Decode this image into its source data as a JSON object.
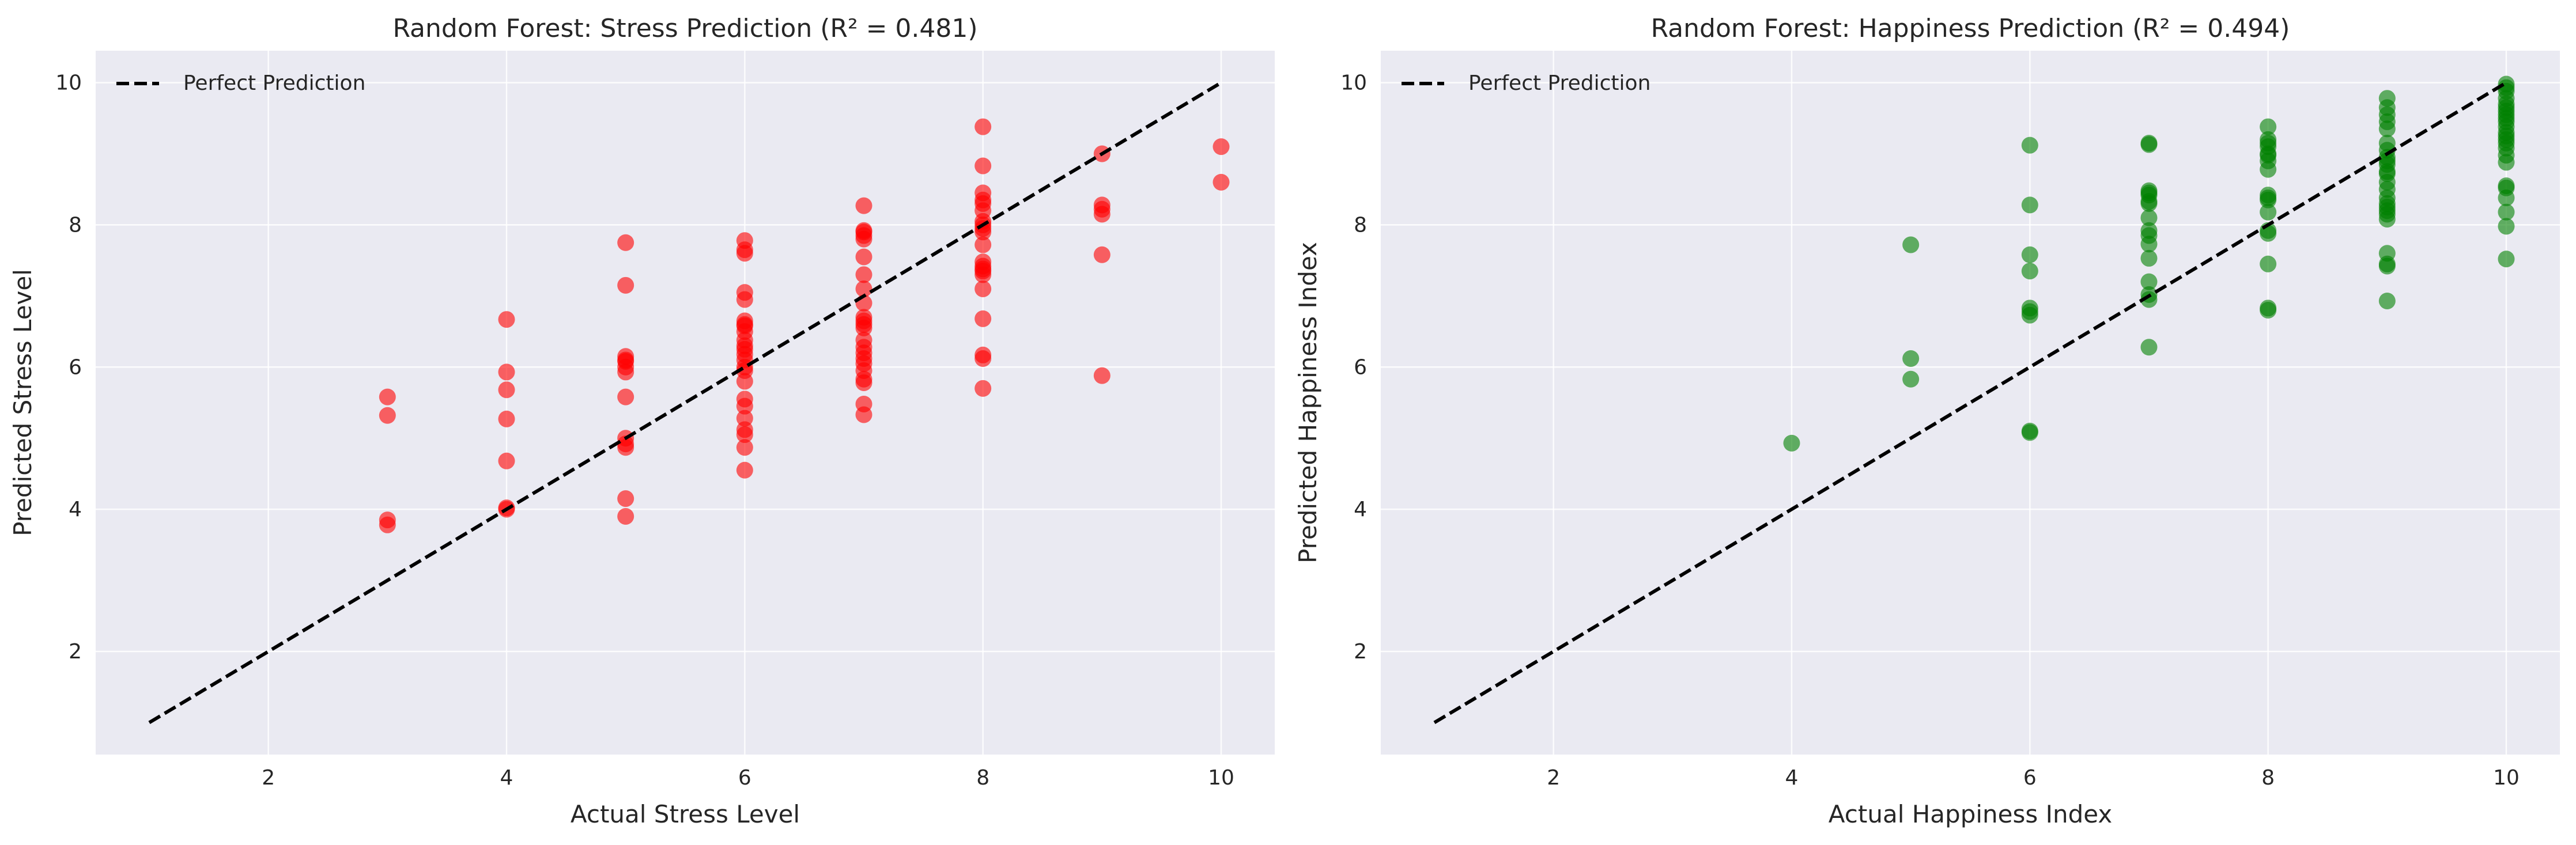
{
  "chart_data": [
    {
      "type": "scatter",
      "title": "Random Forest: Stress Prediction (R² = 0.481)",
      "xlabel": "Actual Stress Level",
      "ylabel": "Predicted Stress Level",
      "xlim": [
        0.55,
        10.45
      ],
      "ylim": [
        0.55,
        10.45
      ],
      "xticks": [
        2,
        4,
        6,
        8,
        10
      ],
      "yticks": [
        2,
        4,
        6,
        8,
        10
      ],
      "grid": true,
      "legend_position": "top-left",
      "series": [
        {
          "name": "",
          "color": "#ff0000",
          "x": [
            3,
            3,
            3,
            3,
            4,
            4,
            4,
            4,
            4,
            4,
            4,
            5,
            5,
            5,
            5,
            5,
            5,
            5,
            5,
            5,
            5,
            5,
            5,
            5,
            6,
            6,
            6,
            6,
            6,
            6,
            6,
            6,
            6,
            6,
            6,
            6,
            6,
            6,
            6,
            6,
            6,
            6,
            6,
            6,
            6,
            6,
            6,
            6,
            7,
            7,
            7,
            7,
            7,
            7,
            7,
            7,
            7,
            7,
            7,
            7,
            7,
            7,
            7,
            7,
            7,
            7,
            7,
            7,
            7,
            7,
            7,
            8,
            8,
            8,
            8,
            8,
            8,
            8,
            8,
            8,
            8,
            8,
            8,
            8,
            8,
            8,
            8,
            8,
            8,
            8,
            8,
            8,
            9,
            9,
            9,
            9,
            9,
            9,
            10,
            10
          ],
          "y": [
            5.58,
            5.32,
            3.85,
            3.78,
            6.67,
            5.93,
            5.68,
            5.27,
            4.68,
            4.02,
            4.0,
            7.75,
            7.15,
            6.15,
            6.08,
            6.0,
            5.93,
            5.58,
            5.0,
            4.92,
            4.87,
            4.15,
            3.9,
            6.1,
            7.78,
            7.65,
            7.6,
            7.05,
            6.95,
            6.65,
            6.58,
            6.5,
            6.38,
            6.25,
            6.18,
            6.1,
            6.0,
            5.95,
            5.8,
            5.55,
            5.45,
            5.28,
            5.12,
            5.05,
            4.87,
            4.55,
            6.6,
            6.3,
            8.27,
            7.92,
            7.85,
            7.8,
            7.55,
            7.3,
            7.1,
            6.9,
            6.7,
            6.65,
            6.55,
            6.38,
            6.28,
            6.12,
            6.05,
            5.95,
            5.83,
            5.78,
            5.48,
            5.33,
            7.9,
            6.6,
            6.2,
            9.38,
            8.83,
            8.45,
            8.3,
            8.2,
            8.0,
            7.95,
            7.72,
            7.48,
            7.42,
            7.35,
            7.3,
            7.1,
            6.68,
            6.17,
            6.12,
            5.7,
            8.35,
            7.38,
            8.05,
            7.9,
            9.0,
            8.28,
            8.22,
            8.15,
            7.58,
            5.88,
            9.1,
            8.6
          ]
        }
      ],
      "reference_line": {
        "label": "Perfect Prediction",
        "x": [
          1,
          10
        ],
        "y": [
          1,
          10
        ],
        "color": "#000000",
        "style": "dashed"
      }
    },
    {
      "type": "scatter",
      "title": "Random Forest: Happiness Prediction (R² = 0.494)",
      "xlabel": "Actual Happiness Index",
      "ylabel": "Predicted Happiness Index",
      "xlim": [
        0.55,
        10.45
      ],
      "ylim": [
        0.55,
        10.45
      ],
      "xticks": [
        2,
        4,
        6,
        8,
        10
      ],
      "yticks": [
        2,
        4,
        6,
        8,
        10
      ],
      "grid": true,
      "legend_position": "top-left",
      "series": [
        {
          "name": "",
          "color": "#008000",
          "x": [
            4,
            5,
            5,
            5,
            6,
            6,
            6,
            6,
            6,
            6,
            6,
            6,
            6,
            7,
            7,
            7,
            7,
            7,
            7,
            7,
            7,
            7,
            7,
            7,
            7,
            7,
            7,
            7,
            7,
            8,
            8,
            8,
            8,
            8,
            8,
            8,
            8,
            8,
            8,
            8,
            8,
            8,
            8,
            8,
            8,
            8,
            9,
            9,
            9,
            9,
            9,
            9,
            9,
            9,
            9,
            9,
            9,
            9,
            9,
            9,
            9,
            9,
            9,
            9,
            9,
            9,
            9,
            9,
            9,
            9,
            10,
            10,
            10,
            10,
            10,
            10,
            10,
            10,
            10,
            10,
            10,
            10,
            10,
            10,
            10,
            10,
            10,
            10,
            10,
            10,
            10,
            10,
            10,
            10
          ],
          "y": [
            4.93,
            7.72,
            6.12,
            5.83,
            9.12,
            8.28,
            7.58,
            7.35,
            6.83,
            6.78,
            6.73,
            5.1,
            5.08,
            9.15,
            9.13,
            8.48,
            8.42,
            8.33,
            8.3,
            8.1,
            7.92,
            7.73,
            7.53,
            7.2,
            7.02,
            6.95,
            6.28,
            8.45,
            7.85,
            9.38,
            9.2,
            9.15,
            9.0,
            8.98,
            8.78,
            8.42,
            8.38,
            8.35,
            8.18,
            7.92,
            7.88,
            7.45,
            6.83,
            6.8,
            9.1,
            8.9,
            9.78,
            9.65,
            9.55,
            9.35,
            9.15,
            8.95,
            8.9,
            8.75,
            8.72,
            8.5,
            8.38,
            8.3,
            8.25,
            8.2,
            8.08,
            7.6,
            7.45,
            7.42,
            6.93,
            9.05,
            8.6,
            8.15,
            9.45,
            8.85,
            9.98,
            9.93,
            9.88,
            9.78,
            9.65,
            9.55,
            9.45,
            9.38,
            9.3,
            9.25,
            9.2,
            9.15,
            9.08,
            8.98,
            8.88,
            8.55,
            8.52,
            8.38,
            8.18,
            7.98,
            7.52,
            9.6,
            9.7,
            9.5
          ]
        }
      ],
      "reference_line": {
        "label": "Perfect Prediction",
        "x": [
          1,
          10
        ],
        "y": [
          1,
          10
        ],
        "color": "#000000",
        "style": "dashed"
      }
    }
  ]
}
